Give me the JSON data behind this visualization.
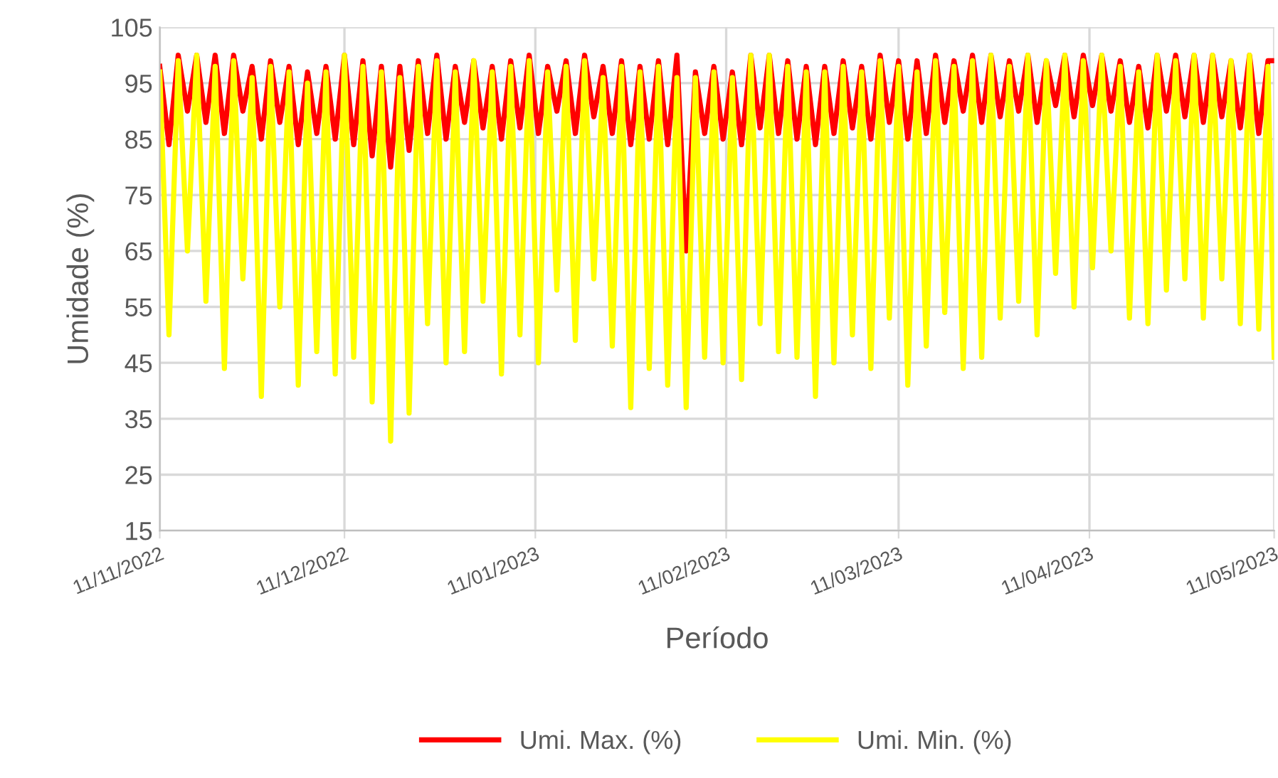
{
  "chart_data": {
    "type": "line",
    "xlabel": "Período",
    "ylabel": "Umidade (%)",
    "x": [
      "2022-11-11T00:00",
      "2022-11-12T12:00",
      "2022-11-14T00:00",
      "2022-11-15T12:00",
      "2022-11-17T00:00",
      "2022-11-18T12:00",
      "2022-11-20T00:00",
      "2022-11-21T12:00",
      "2022-11-23T00:00",
      "2022-11-24T12:00",
      "2022-11-26T00:00",
      "2022-11-27T12:00",
      "2022-11-29T00:00",
      "2022-11-30T12:00",
      "2022-12-02T00:00",
      "2022-12-03T12:00",
      "2022-12-05T00:00",
      "2022-12-06T12:00",
      "2022-12-08T00:00",
      "2022-12-09T12:00",
      "2022-12-11T00:00",
      "2022-12-12T12:00",
      "2022-12-14T00:00",
      "2022-12-15T12:00",
      "2022-12-17T00:00",
      "2022-12-18T12:00",
      "2022-12-20T00:00",
      "2022-12-21T12:00",
      "2022-12-23T00:00",
      "2022-12-24T12:00",
      "2022-12-26T00:00",
      "2022-12-27T12:00",
      "2022-12-29T00:00",
      "2022-12-30T12:00",
      "2023-01-01T00:00",
      "2023-01-02T12:00",
      "2023-01-04T00:00",
      "2023-01-05T12:00",
      "2023-01-07T00:00",
      "2023-01-08T12:00",
      "2023-01-10T00:00",
      "2023-01-11T12:00",
      "2023-01-13T00:00",
      "2023-01-14T12:00",
      "2023-01-16T00:00",
      "2023-01-17T12:00",
      "2023-01-19T00:00",
      "2023-01-20T12:00",
      "2023-01-22T00:00",
      "2023-01-23T12:00",
      "2023-01-25T00:00",
      "2023-01-26T12:00",
      "2023-01-28T00:00",
      "2023-01-29T12:00",
      "2023-01-31T00:00",
      "2023-02-01T12:00",
      "2023-02-03T00:00",
      "2023-02-04T12:00",
      "2023-02-06T00:00",
      "2023-02-07T12:00",
      "2023-02-09T00:00",
      "2023-02-10T12:00",
      "2023-02-12T00:00",
      "2023-02-13T12:00",
      "2023-02-15T00:00",
      "2023-02-16T12:00",
      "2023-02-18T00:00",
      "2023-02-19T12:00",
      "2023-02-21T00:00",
      "2023-02-22T12:00",
      "2023-02-24T00:00",
      "2023-02-25T12:00",
      "2023-02-27T00:00",
      "2023-02-28T12:00",
      "2023-03-02T00:00",
      "2023-03-03T12:00",
      "2023-03-05T00:00",
      "2023-03-06T12:00",
      "2023-03-08T00:00",
      "2023-03-09T12:00",
      "2023-03-11T00:00",
      "2023-03-12T12:00",
      "2023-03-14T00:00",
      "2023-03-15T12:00",
      "2023-03-17T00:00",
      "2023-03-18T12:00",
      "2023-03-20T00:00",
      "2023-03-21T12:00",
      "2023-03-23T00:00",
      "2023-03-24T12:00",
      "2023-03-26T00:00",
      "2023-03-27T12:00",
      "2023-03-29T00:00",
      "2023-03-30T12:00",
      "2023-04-01T00:00",
      "2023-04-02T12:00",
      "2023-04-04T00:00",
      "2023-04-05T12:00",
      "2023-04-07T00:00",
      "2023-04-08T12:00",
      "2023-04-10T00:00",
      "2023-04-11T12:00",
      "2023-04-13T00:00",
      "2023-04-14T12:00",
      "2023-04-16T00:00",
      "2023-04-17T12:00",
      "2023-04-19T00:00",
      "2023-04-20T12:00",
      "2023-04-22T00:00",
      "2023-04-23T12:00",
      "2023-04-25T00:00",
      "2023-04-26T12:00",
      "2023-04-28T00:00",
      "2023-04-29T12:00",
      "2023-05-01T00:00",
      "2023-05-02T12:00",
      "2023-05-04T00:00",
      "2023-05-05T12:00",
      "2023-05-07T00:00",
      "2023-05-08T12:00",
      "2023-05-10T00:00",
      "2023-05-11T00:00"
    ],
    "series": [
      {
        "name": "Umi. Max. (%)",
        "color": "#ff0000",
        "values": [
          98,
          84,
          100,
          90,
          100,
          88,
          100,
          86,
          100,
          90,
          98,
          85,
          99,
          88,
          98,
          84,
          97,
          86,
          98,
          85,
          100,
          84,
          99,
          82,
          98,
          80,
          98,
          83,
          99,
          86,
          100,
          85,
          98,
          88,
          99,
          87,
          98,
          85,
          99,
          87,
          100,
          86,
          98,
          90,
          99,
          86,
          100,
          89,
          98,
          86,
          99,
          84,
          98,
          85,
          99,
          84,
          100,
          65,
          97,
          86,
          98,
          85,
          97,
          84,
          100,
          87,
          100,
          86,
          99,
          85,
          98,
          84,
          98,
          86,
          99,
          87,
          98,
          85,
          100,
          88,
          99,
          85,
          99,
          86,
          100,
          88,
          99,
          90,
          100,
          88,
          100,
          89,
          99,
          90,
          100,
          88,
          99,
          91,
          100,
          89,
          100,
          91,
          100,
          90,
          99,
          88,
          98,
          87,
          100,
          90,
          100,
          89,
          100,
          88,
          100,
          89,
          99,
          87,
          100,
          86,
          99,
          99
        ]
      },
      {
        "name": "Umi. Min. (%)",
        "color": "#ffff00",
        "values": [
          97,
          50,
          99,
          65,
          100,
          56,
          98,
          44,
          99,
          60,
          96,
          39,
          98,
          55,
          97,
          41,
          95,
          47,
          97,
          43,
          100,
          46,
          98,
          38,
          97,
          31,
          96,
          36,
          98,
          52,
          99,
          45,
          97,
          47,
          99,
          56,
          97,
          43,
          98,
          50,
          99,
          45,
          97,
          58,
          98,
          49,
          99,
          60,
          96,
          48,
          98,
          37,
          97,
          44,
          98,
          41,
          96,
          37,
          96,
          46,
          97,
          45,
          96,
          42,
          100,
          52,
          100,
          47,
          98,
          46,
          97,
          39,
          97,
          45,
          98,
          50,
          97,
          44,
          99,
          53,
          98,
          41,
          97,
          48,
          99,
          54,
          98,
          44,
          99,
          46,
          100,
          53,
          98,
          56,
          100,
          50,
          99,
          61,
          100,
          55,
          99,
          62,
          100,
          65,
          98,
          53,
          97,
          52,
          100,
          58,
          99,
          60,
          100,
          53,
          100,
          60,
          99,
          52,
          100,
          51,
          98,
          46
        ]
      }
    ],
    "xlim": [
      "2022-11-11",
      "2023-05-11"
    ],
    "xticks": [
      {
        "value": "2022-11-11",
        "label": "11/11/2022"
      },
      {
        "value": "2022-12-11",
        "label": "11/12/2022"
      },
      {
        "value": "2023-01-11",
        "label": "11/01/2023"
      },
      {
        "value": "2023-02-11",
        "label": "11/02/2023"
      },
      {
        "value": "2023-03-11",
        "label": "11/03/2023"
      },
      {
        "value": "2023-04-11",
        "label": "11/04/2023"
      },
      {
        "value": "2023-05-11",
        "label": "11/05/2023"
      }
    ],
    "ylim": [
      15,
      105
    ],
    "yticks": [
      15,
      25,
      35,
      45,
      55,
      65,
      75,
      85,
      95,
      105
    ],
    "grid": true,
    "legend": "bottom",
    "marker": "none",
    "line_style": "solid"
  }
}
